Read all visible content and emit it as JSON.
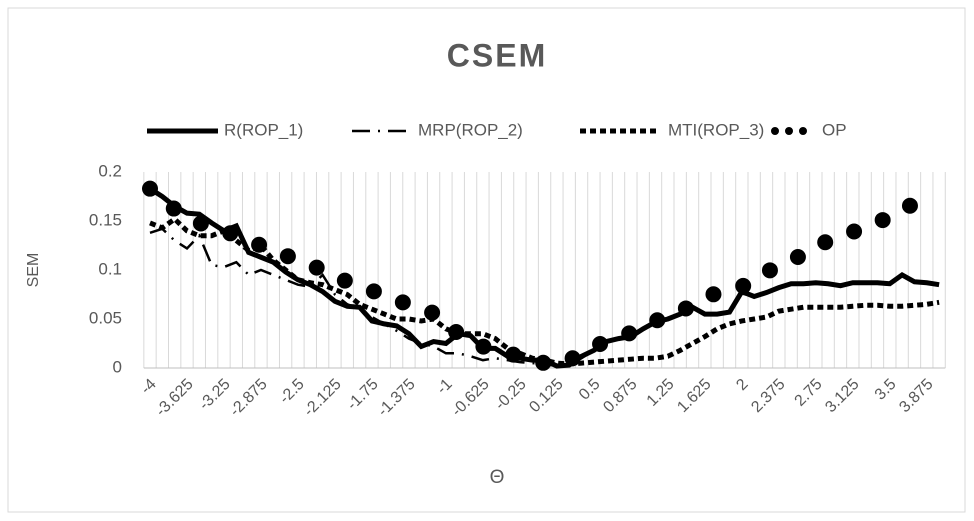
{
  "chart_data": {
    "type": "line",
    "title": "CSEM",
    "x_label": "Θ",
    "y_label": "SEM",
    "categories": [
      "-4",
      null,
      null,
      "-3.625",
      null,
      null,
      "-3.25",
      null,
      null,
      "-2.875",
      null,
      null,
      "-2.5",
      null,
      null,
      "-2.125",
      null,
      null,
      "-1.75",
      null,
      null,
      "-1.375",
      null,
      null,
      "-1",
      null,
      null,
      "-0.625",
      null,
      null,
      "-0.25",
      null,
      null,
      "0.125",
      null,
      null,
      "0.5",
      null,
      null,
      "0.875",
      null,
      null,
      "1.25",
      null,
      null,
      "1.625",
      null,
      null,
      "2",
      null,
      null,
      "2.375",
      null,
      null,
      "2.75",
      null,
      null,
      "3.125",
      null,
      null,
      "3.5",
      null,
      null,
      "3.875",
      null
    ],
    "series": [
      {
        "name": "R(ROP_1)",
        "color": "#000000",
        "style": "solid",
        "values": [
          0.183,
          0.175,
          0.165,
          0.158,
          0.157,
          0.148,
          0.14,
          0.145,
          0.118,
          0.113,
          0.108,
          0.098,
          0.09,
          0.085,
          0.078,
          0.068,
          0.063,
          0.062,
          0.048,
          0.045,
          0.043,
          0.035,
          0.022,
          0.027,
          0.025,
          0.035,
          0.033,
          0.02,
          0.02,
          0.012,
          0.01,
          0.008,
          0.008,
          0.002,
          0.003,
          0.012,
          0.018,
          0.027,
          0.03,
          0.032,
          0.04,
          0.047,
          0.05,
          0.055,
          0.062,
          0.055,
          0.055,
          0.057,
          0.078,
          0.073,
          0.077,
          0.082,
          0.086,
          0.086,
          0.087,
          0.086,
          0.084,
          0.087,
          0.087,
          0.087,
          0.086,
          0.095,
          0.088,
          0.087,
          0.085
        ]
      },
      {
        "name": "MRP(ROP_2)",
        "color": "#000000",
        "style": "dashdot",
        "values": [
          0.138,
          0.142,
          0.13,
          0.122,
          0.135,
          0.105,
          0.103,
          0.108,
          0.095,
          0.1,
          0.095,
          0.09,
          0.085,
          0.083,
          0.095,
          0.075,
          0.065,
          0.06,
          0.052,
          0.045,
          0.038,
          0.03,
          0.025,
          0.022,
          0.015,
          0.015,
          0.012,
          0.008,
          0.01,
          0.008,
          0.006,
          0.005,
          0.004,
          0.002,
          0.003,
          0.01,
          0.018,
          0.026,
          0.03,
          0.033,
          0.04,
          0.046,
          0.05,
          0.055,
          0.06,
          0.055,
          0.055,
          0.056,
          0.076,
          0.073,
          0.076,
          0.082,
          0.085,
          0.085,
          0.086,
          0.085,
          0.083,
          0.086,
          0.086,
          0.086,
          0.085,
          0.094,
          0.088,
          0.086,
          0.084
        ]
      },
      {
        "name": "MTI(ROP_3)",
        "color": "#000000",
        "style": "dash",
        "values": [
          0.148,
          0.143,
          0.152,
          0.14,
          0.135,
          0.135,
          0.14,
          0.13,
          0.12,
          0.125,
          0.11,
          0.1,
          0.09,
          0.087,
          0.085,
          0.08,
          0.075,
          0.065,
          0.06,
          0.055,
          0.05,
          0.05,
          0.048,
          0.05,
          0.04,
          0.035,
          0.035,
          0.035,
          0.03,
          0.02,
          0.015,
          0.01,
          0.008,
          0.005,
          0.004,
          0.005,
          0.006,
          0.007,
          0.008,
          0.009,
          0.01,
          0.01,
          0.012,
          0.018,
          0.025,
          0.032,
          0.04,
          0.045,
          0.048,
          0.05,
          0.052,
          0.058,
          0.06,
          0.062,
          0.062,
          0.062,
          0.062,
          0.063,
          0.064,
          0.064,
          0.063,
          0.063,
          0.064,
          0.065,
          0.067
        ]
      },
      {
        "name": "OP",
        "color": "#000000",
        "style": "dot",
        "values": [
          0.183,
          0.172,
          0.162,
          0.155,
          0.148,
          0.144,
          0.14,
          0.135,
          0.13,
          0.125,
          0.12,
          0.115,
          0.11,
          0.105,
          0.1,
          0.094,
          0.088,
          0.084,
          0.079,
          0.074,
          0.069,
          0.065,
          0.06,
          0.056,
          0.045,
          0.035,
          0.029,
          0.022,
          0.018,
          0.015,
          0.012,
          0.008,
          0.005,
          0.003,
          0.008,
          0.015,
          0.022,
          0.027,
          0.031,
          0.036,
          0.042,
          0.048,
          0.053,
          0.058,
          0.064,
          0.071,
          0.077,
          0.08,
          0.083,
          0.09,
          0.098,
          0.104,
          0.11,
          0.116,
          0.123,
          0.13,
          0.136,
          0.139,
          0.142,
          0.148,
          0.155,
          0.163,
          0.167,
          0.171,
          0.174
        ]
      }
    ],
    "ylim": [
      0,
      0.2
    ],
    "yticks": [
      0,
      0.05,
      0.1,
      0.15,
      0.2
    ],
    "legend": "top"
  }
}
